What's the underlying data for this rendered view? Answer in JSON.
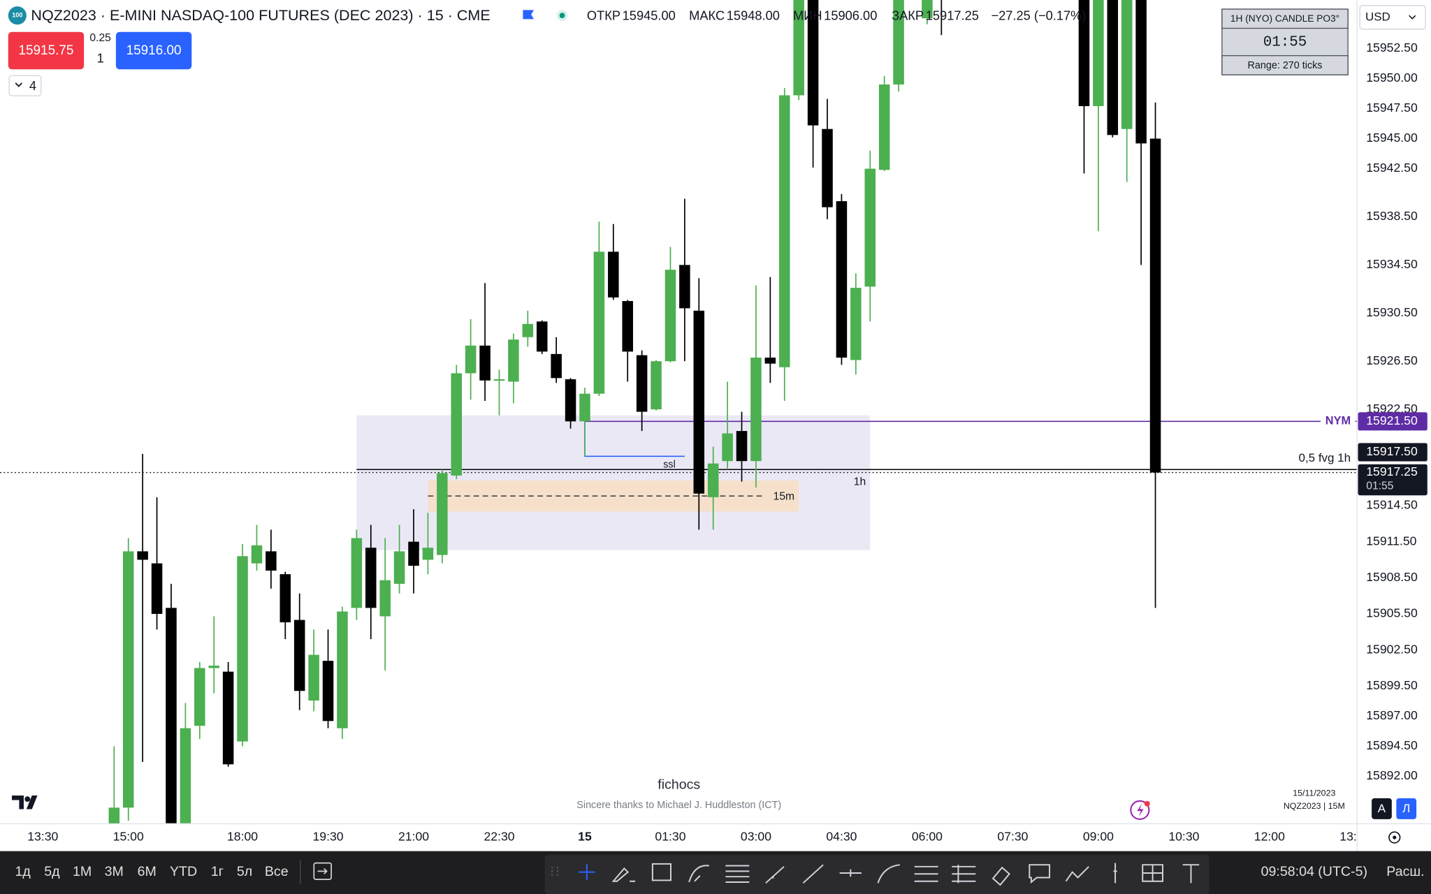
{
  "header": {
    "logo": "100",
    "symbol": "NQZ2023 · E-MINI NASDAQ-100 FUTURES (DEC 2023) · 15 · CME",
    "ohlc": [
      {
        "label": "ОТКР",
        "value": "15945.00"
      },
      {
        "label": "МАКС",
        "value": "15948.00"
      },
      {
        "label": "МИН",
        "value": "15906.00"
      },
      {
        "label": "ЗАКР",
        "value": "15917.25"
      }
    ],
    "change": "−27.25 (−0.17%)"
  },
  "trade": {
    "sell": "15915.75",
    "spread": "0.25",
    "qty": "1",
    "buy": "15916.00",
    "layers": "4"
  },
  "widget": {
    "title": "1H (NYO) CANDLE PO3°",
    "timer": "01:55",
    "range": "Range: 270 ticks"
  },
  "currency": "USD",
  "watermark": {
    "author": "fichocs",
    "thanks": "Sincere thanks to Michael J. Huddleston (ICT)",
    "date": "15/11/2023",
    "symbol": "NQZ2023 | 15M"
  },
  "scale_buttons": [
    "А",
    "Л"
  ],
  "toolbar": {
    "periods": [
      "1д",
      "5д",
      "1М",
      "3М",
      "6М",
      "YTD",
      "1г",
      "5л",
      "Все"
    ],
    "clock": "09:58:04 (UTC-5)",
    "extended": "Расш."
  },
  "chart_data": {
    "type": "candlestick",
    "up_color": "#4caf50",
    "down_color": "#000000",
    "xlim": [
      -8,
      87.14
    ],
    "ylim": [
      15888.06,
      15956.52
    ],
    "xticks": [
      {
        "value": -5,
        "label": "13:30"
      },
      {
        "value": 1,
        "label": "15:00"
      },
      {
        "value": 9,
        "label": "18:00"
      },
      {
        "value": 15,
        "label": "19:30"
      },
      {
        "value": 21,
        "label": "21:00"
      },
      {
        "value": 27,
        "label": "22:30"
      },
      {
        "value": 33,
        "label": "15"
      },
      {
        "value": 39,
        "label": "01:30"
      },
      {
        "value": 45,
        "label": "03:00"
      },
      {
        "value": 51,
        "label": "04:30"
      },
      {
        "value": 57,
        "label": "06:00"
      },
      {
        "value": 63,
        "label": "07:30"
      },
      {
        "value": 69,
        "label": "09:00"
      },
      {
        "value": 75,
        "label": "10:30"
      },
      {
        "value": 81,
        "label": "12:00"
      },
      {
        "value": 87,
        "label": "13:30"
      }
    ],
    "yticks": [
      {
        "value": 15952.5,
        "label": "15952.50"
      },
      {
        "value": 15950,
        "label": "15950.00"
      },
      {
        "value": 15947.5,
        "label": "15947.50"
      },
      {
        "value": 15945,
        "label": "15945.00"
      },
      {
        "value": 15942.5,
        "label": "15942.50"
      },
      {
        "value": 15938.5,
        "label": "15938.50"
      },
      {
        "value": 15934.5,
        "label": "15934.50"
      },
      {
        "value": 15930.5,
        "label": "15930.50"
      },
      {
        "value": 15926.5,
        "label": "15926.50"
      },
      {
        "value": 15922.5,
        "label": "15922.50"
      },
      {
        "value": 15914.5,
        "label": "15914.50"
      },
      {
        "value": 15911.5,
        "label": "15911.50"
      },
      {
        "value": 15908.5,
        "label": "15908.50"
      },
      {
        "value": 15905.5,
        "label": "15905.50"
      },
      {
        "value": 15902.5,
        "label": "15902.50"
      },
      {
        "value": 15899.5,
        "label": "15899.50"
      },
      {
        "value": 15897,
        "label": "15897.00"
      },
      {
        "value": 15894.5,
        "label": "15894.50"
      },
      {
        "value": 15892,
        "label": "15892.00"
      }
    ],
    "x": [
      0,
      1,
      2,
      3,
      4,
      5,
      6,
      7,
      8,
      9,
      10,
      11,
      12,
      13,
      14,
      15,
      16,
      17,
      18,
      19,
      20,
      21,
      22,
      23,
      24,
      25,
      26,
      27,
      28,
      29,
      30,
      31,
      32,
      33,
      34,
      35,
      36,
      37,
      38,
      39,
      40,
      41,
      42,
      43,
      44,
      45,
      46,
      47,
      48,
      49,
      50,
      51,
      52,
      53,
      54,
      55,
      57,
      58,
      68,
      69,
      70,
      71,
      72,
      73
    ],
    "open": [
      15888.0,
      15889.4,
      15910.7,
      15909.7,
      15906.0,
      15888.1,
      15896.2,
      15901.0,
      15900.7,
      15894.9,
      15909.7,
      15910.7,
      15908.8,
      15905.0,
      15898.3,
      15901.6,
      15896.0,
      15906.0,
      15911.0,
      15905.3,
      15908.0,
      15911.5,
      15910.0,
      15910.4,
      15917.0,
      15925.5,
      15927.8,
      15924.9,
      15924.8,
      15928.5,
      15929.8,
      15927.1,
      15925.0,
      15921.5,
      15923.8,
      15935.6,
      15931.5,
      15927.0,
      15922.5,
      15926.5,
      15934.5,
      15930.7,
      15915.2,
      15918.2,
      15920.7,
      15918.2,
      15926.8,
      15926.0,
      15948.6,
      15957.5,
      15945.8,
      15939.8,
      15926.6,
      15932.7,
      15942.4,
      15949.5,
      15955.0,
      15960.0,
      15962.0,
      15947.7,
      15962.0,
      15945.8,
      15962.0,
      15945.0
    ],
    "high": [
      15894.5,
      15911.8,
      15918.8,
      15915.2,
      15908.0,
      15898.1,
      15901.5,
      15905.3,
      15901.5,
      15911.3,
      15912.9,
      15912.5,
      15909.0,
      15907.2,
      15904.2,
      15904.2,
      15906.1,
      15912.5,
      15912.9,
      15911.8,
      15912.9,
      15914.2,
      15913.9,
      15917.5,
      15926.2,
      15930.0,
      15933.0,
      15925.8,
      15928.8,
      15930.7,
      15929.9,
      15928.5,
      15925.1,
      15924.3,
      15938.1,
      15937.9,
      15931.6,
      15927.4,
      15926.6,
      15936.0,
      15940.0,
      15933.4,
      15919.4,
      15924.8,
      15922.3,
      15932.8,
      15933.5,
      15949.2,
      15958.0,
      15958.0,
      15948.3,
      15940.4,
      15933.8,
      15944.0,
      15950.2,
      15959.0,
      15961.0,
      15961.0,
      15963.0,
      15961.0,
      15963.0,
      15961.0,
      15963.0,
      15948.0
    ],
    "low": [
      15886.0,
      15888.3,
      15893.2,
      15904.2,
      15887.5,
      15887.5,
      15895.1,
      15898.9,
      15892.8,
      15894.5,
      15909.1,
      15907.6,
      15903.4,
      15897.5,
      15897.4,
      15896.0,
      15895.1,
      15905.0,
      15903.4,
      15900.8,
      15907.2,
      15907.2,
      15908.8,
      15909.7,
      15916.7,
      15923.3,
      15923.2,
      15922.0,
      15923.0,
      15927.7,
      15927.1,
      15924.7,
      15920.9,
      15918.6,
      15923.6,
      15931.6,
      15924.8,
      15920.7,
      15922.4,
      15926.4,
      15926.5,
      15912.5,
      15912.5,
      15917.5,
      15916.5,
      15916.0,
      15924.7,
      15923.2,
      15948.2,
      15942.6,
      15938.3,
      15926.2,
      15925.4,
      15929.8,
      15942.3,
      15948.9,
      15954.5,
      15953.6,
      15942.1,
      15937.3,
      15945.1,
      15941.4,
      15934.5,
      15906.0
    ],
    "close": [
      15889.4,
      15910.7,
      15910.0,
      15905.5,
      15888.1,
      15896.0,
      15901.0,
      15901.2,
      15893.0,
      15910.3,
      15911.2,
      15909.1,
      15904.8,
      15899.1,
      15902.1,
      15896.6,
      15905.7,
      15911.8,
      15906.0,
      15908.3,
      15910.7,
      15909.5,
      15911.0,
      15917.2,
      15925.5,
      15927.8,
      15924.9,
      15925.0,
      15928.3,
      15929.6,
      15927.3,
      15925.1,
      15921.5,
      15923.8,
      15935.6,
      15931.8,
      15927.3,
      15922.3,
      15926.5,
      15934.1,
      15930.9,
      15915.5,
      15918.0,
      15920.5,
      15918.2,
      15926.8,
      15926.3,
      15948.6,
      15957.0,
      15946.1,
      15939.3,
      15926.8,
      15932.6,
      15942.5,
      15949.5,
      15958.0,
      15960.0,
      15957.0,
      15947.7,
      15960.0,
      15945.3,
      15960.0,
      15944.6,
      15917.25
    ],
    "zones": [
      {
        "name": "1h",
        "top": 15922.0,
        "bottom": 15910.8,
        "from": 17,
        "to": 53,
        "color": "#ebe8f6"
      },
      {
        "name": "15m",
        "top": 15916.6,
        "bottom": 15914.0,
        "mid": 15915.3,
        "from": 22,
        "to": 48,
        "color": "#f6e0cb"
      }
    ],
    "ssl": {
      "name": "ssl",
      "value": 15918.6,
      "from": 33,
      "to": 40,
      "color": "#2962ff"
    },
    "levels": [
      {
        "name": "NYM",
        "value": 15921.5,
        "label": "15921.50",
        "from": 33,
        "color": "#5e2ca5"
      },
      {
        "name": "0,5 fvg 1h",
        "value": 15917.5,
        "label": "15917.50",
        "from": 17,
        "color": "#000000"
      }
    ],
    "last": {
      "value": 15917.25,
      "label": "15917.25",
      "countdown": "01:55"
    }
  }
}
